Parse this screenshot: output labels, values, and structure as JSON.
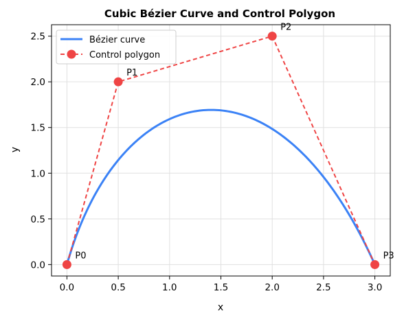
{
  "chart_data": {
    "type": "line",
    "title": "Cubic Bézier Curve and Control Polygon",
    "xlabel": "x",
    "ylabel": "y",
    "xlim": [
      -0.15,
      3.15
    ],
    "ylim": [
      -0.125,
      2.625
    ],
    "xticks": [
      "0.0",
      "0.5",
      "1.0",
      "1.5",
      "2.0",
      "2.5",
      "3.0"
    ],
    "yticks": [
      "0.0",
      "0.5",
      "1.0",
      "1.5",
      "2.0",
      "2.5"
    ],
    "grid": true,
    "legend_position": "top-left",
    "series": [
      {
        "name": "Bézier curve",
        "color": "#3b82f6",
        "style": "solid",
        "curve": "cubic-bezier",
        "control_points": [
          [
            0,
            0
          ],
          [
            0.5,
            2
          ],
          [
            2,
            2.5
          ],
          [
            3,
            0
          ]
        ]
      },
      {
        "name": "Control polygon",
        "color": "#ef4444",
        "style": "dashed",
        "marker": "circle",
        "x": [
          0,
          0.5,
          2,
          3
        ],
        "y": [
          0,
          2,
          2.5,
          0
        ]
      }
    ],
    "point_labels": [
      "P0",
      "P1",
      "P2",
      "P3"
    ]
  }
}
